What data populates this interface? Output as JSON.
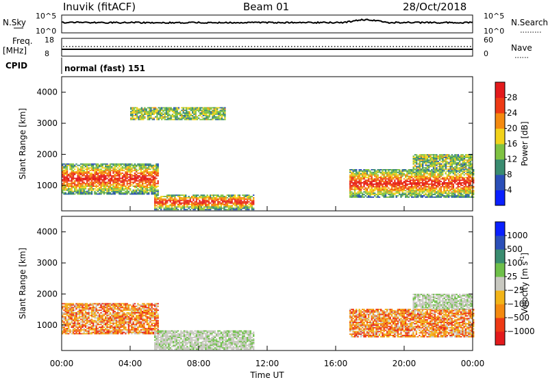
{
  "header": {
    "station": "Inuvik (fitACF)",
    "beam": "Beam 01",
    "date": "28/Oct/2018"
  },
  "aux": {
    "nsky_label": "N.Sky",
    "nsearch_label": "N.Search",
    "freq_label": "Freq.",
    "freq_unit": "[MHz]",
    "nave_label": "Nave",
    "cpid_label": "CPID",
    "cpid_value": "normal (fast) 151",
    "noise_ticks_left": [
      "10^5",
      "10^0"
    ],
    "noise_ticks_right": [
      "10^5",
      "10^0"
    ],
    "freq_ticks": [
      "18",
      "8"
    ],
    "nave_ticks": [
      "60",
      "0"
    ]
  },
  "chart_data": [
    {
      "type": "heatmap",
      "quantity": "power",
      "ylabel": "Slant Range [km]",
      "ylim": [
        180,
        4500
      ],
      "yticks": [
        1000,
        2000,
        3000,
        4000
      ],
      "xlim": [
        0,
        24
      ],
      "colorbar": {
        "label": "Power [dB]",
        "ticks": [
          "4",
          "8",
          "12",
          "16",
          "20",
          "24",
          "28"
        ],
        "colors": [
          "#0a20ff",
          "#2b4fb8",
          "#3a8c70",
          "#7fc242",
          "#f2d21a",
          "#f48a10",
          "#ee3a15",
          "#e31a1c"
        ]
      },
      "regions": [
        {
          "t0": 0.0,
          "t1": 5.6,
          "r0": 700,
          "r1": 1700,
          "level": "strong"
        },
        {
          "t0": 5.4,
          "t1": 11.2,
          "r0": 200,
          "r1": 700,
          "level": "strong"
        },
        {
          "t0": 16.8,
          "t1": 24.0,
          "r0": 600,
          "r1": 1500,
          "level": "strong"
        },
        {
          "t0": 4.0,
          "t1": 9.5,
          "r0": 3100,
          "r1": 3500,
          "level": "weak"
        },
        {
          "t0": 20.5,
          "t1": 24.0,
          "r0": 1500,
          "r1": 2000,
          "level": "weak"
        }
      ]
    },
    {
      "type": "heatmap",
      "quantity": "velocity",
      "ylabel": "Slant Range [km]",
      "ylim": [
        180,
        4500
      ],
      "yticks": [
        1000,
        2000,
        3000,
        4000
      ],
      "xlim": [
        0,
        24
      ],
      "xlabel": "Time UT",
      "xticks": [
        "00:00",
        "04:00",
        "08:00",
        "12:00",
        "16:00",
        "20:00",
        "00:00"
      ],
      "colorbar": {
        "label": "Velocity [m s",
        "label_sup": "-1",
        "label_end": "]",
        "ticks": [
          "1000",
          "500",
          "100",
          "25",
          "−25",
          "−100",
          "−500",
          "−1000"
        ],
        "colors": [
          "#0a20ff",
          "#2b4fb8",
          "#3a8c70",
          "#6fc04a",
          "#c8c8c0",
          "#f2b418",
          "#f48a10",
          "#ee3a15",
          "#e31a1c"
        ]
      },
      "regions": [
        {
          "t0": 0.0,
          "t1": 5.6,
          "r0": 700,
          "r1": 1700,
          "level": "strong"
        },
        {
          "t0": 5.4,
          "t1": 11.2,
          "r0": 200,
          "r1": 800,
          "level": "weak"
        },
        {
          "t0": 16.8,
          "t1": 24.0,
          "r0": 600,
          "r1": 1500,
          "level": "strong"
        },
        {
          "t0": 20.5,
          "t1": 24.0,
          "r0": 1500,
          "r1": 2000,
          "level": "weak"
        }
      ]
    }
  ]
}
